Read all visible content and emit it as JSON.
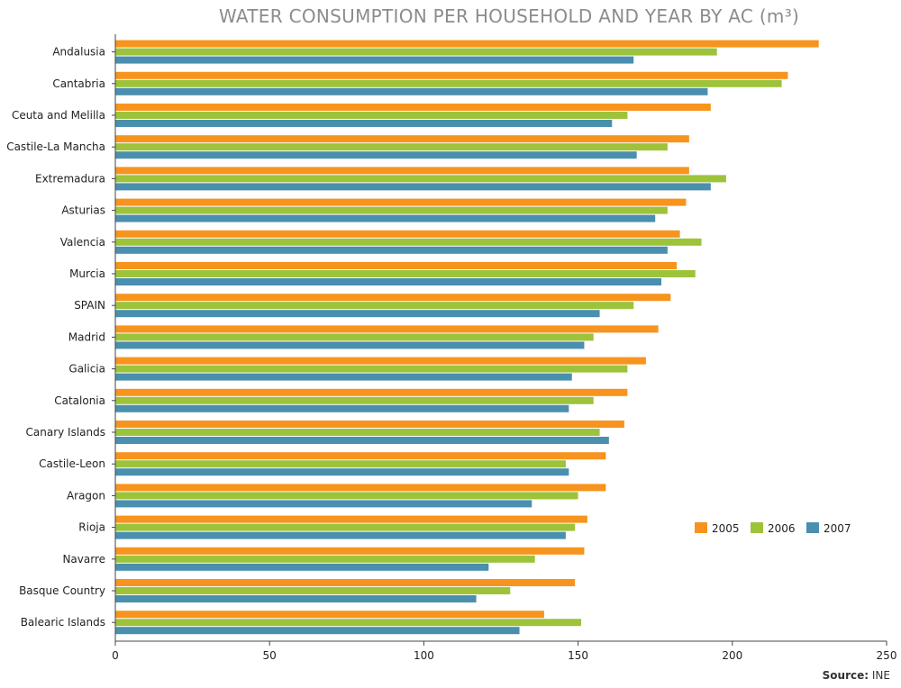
{
  "chart_data": {
    "type": "bar",
    "orientation": "horizontal",
    "title": "WATER CONSUMPTION PER HOUSEHOLD AND YEAR BY AC (m³)",
    "categories": [
      "Andalusia",
      "Cantabria",
      "Ceuta and Melilla",
      "Castile-La Mancha",
      "Extremadura",
      "Asturias",
      "Valencia",
      "Murcia",
      "SPAIN",
      "Madrid",
      "Galicia",
      "Catalonia",
      "Canary Islands",
      "Castile-Leon",
      "Aragon",
      "Rioja",
      "Navarre",
      "Basque Country",
      "Balearic Islands"
    ],
    "series": [
      {
        "name": "2005",
        "color": "#f7941d",
        "values": [
          228,
          218,
          193,
          186,
          186,
          185,
          183,
          182,
          180,
          176,
          172,
          166,
          165,
          159,
          159,
          153,
          152,
          149,
          139
        ]
      },
      {
        "name": "2006",
        "color": "#9dc33b",
        "values": [
          195,
          216,
          166,
          179,
          198,
          179,
          190,
          188,
          168,
          155,
          166,
          155,
          157,
          146,
          150,
          149,
          136,
          128,
          151
        ]
      },
      {
        "name": "2007",
        "color": "#4a8fae",
        "values": [
          168,
          192,
          161,
          169,
          193,
          175,
          179,
          177,
          157,
          152,
          148,
          147,
          160,
          147,
          135,
          146,
          121,
          117,
          131
        ]
      }
    ],
    "xlim": [
      0,
      250
    ],
    "xticks": [
      0,
      50,
      100,
      150,
      200,
      250
    ],
    "legend_position": "right",
    "grid": false
  },
  "source": {
    "label": "Source:",
    "value": "INE"
  }
}
